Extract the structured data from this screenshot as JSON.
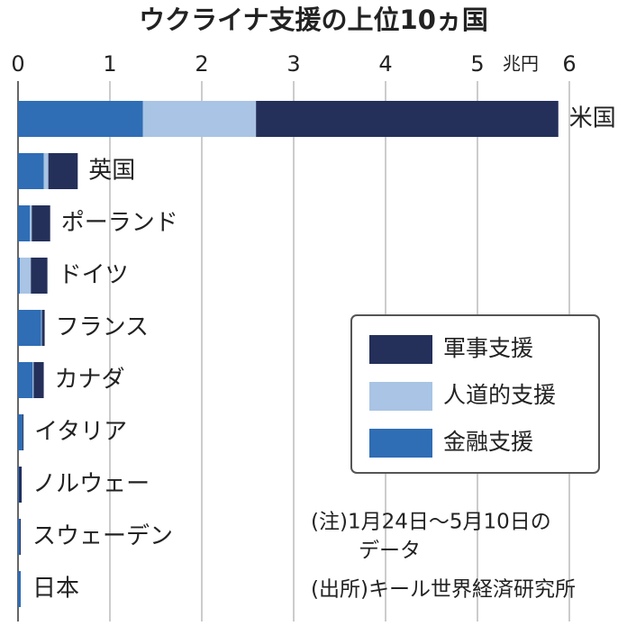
{
  "chart_data": {
    "type": "stacked-bar-horizontal",
    "title": "ウクライナ支援の上位10ヵ国",
    "x_label": "兆円",
    "categories": [
      "米国",
      "英国",
      "ポーランド",
      "ドイツ",
      "フランス",
      "カナダ",
      "イタリア",
      "ノルウェー",
      "スウェーデン",
      "日本"
    ],
    "series": [
      {
        "name": "金融支援",
        "color": "#2f6db5",
        "values": [
          1.36,
          0.28,
          0.13,
          0.02,
          0.25,
          0.16,
          0.05,
          0.01,
          0.02,
          0.03
        ]
      },
      {
        "name": "人道的支援",
        "color": "#a9c4e4",
        "values": [
          1.23,
          0.05,
          0.02,
          0.12,
          0.01,
          0.01,
          0,
          0,
          0,
          0
        ]
      },
      {
        "name": "軍事支援",
        "color": "#24305a",
        "values": [
          3.29,
          0.32,
          0.2,
          0.18,
          0.03,
          0.11,
          0.01,
          0.03,
          0.01,
          0
        ]
      }
    ],
    "xlim": [
      0,
      6
    ],
    "xticks": [
      0,
      1,
      2,
      3,
      4,
      5,
      6
    ],
    "grid": true,
    "notes": [
      "(注)1月24日～5月10日の",
      "データ"
    ],
    "source": "(出所)キール世界経済研究所"
  }
}
